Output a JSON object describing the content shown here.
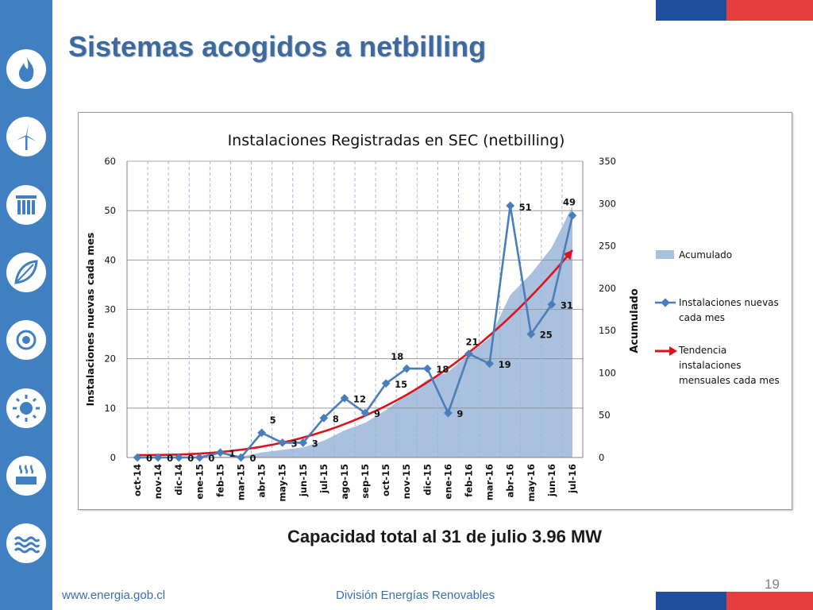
{
  "slide": {
    "title": "Sistemas acogidos a netbilling",
    "subtitle": "Capacidad total al 31 de julio 3.96 MW",
    "footer_url": "www.energia.gob.cl",
    "footer_division": "División Energías Renovables",
    "page_number": "19"
  },
  "sidebar_icons": [
    "flame-icon",
    "wind-turbine-icon",
    "columns-icon",
    "bio-leaf-icon",
    "geothermal-icon",
    "sun-icon",
    "thermal-waves-icon",
    "water-waves-icon"
  ],
  "colors": {
    "sidebar": "#3f7fc2",
    "title": "#3d6a9e",
    "area": "#a9c0de",
    "line": "#4a7ebb",
    "trend": "#e0111b",
    "flag_blue": "#1f4e9c",
    "flag_red": "#e63d3d"
  },
  "chart_data": {
    "type": "line",
    "title": "Instalaciones Registradas en SEC (netbilling)",
    "ylabel": "Instalaciones  nuevas cada mes",
    "y2label": "Acumulado",
    "categories": [
      "oct-14",
      "nov-14",
      "dic-14",
      "ene-15",
      "feb-15",
      "mar-15",
      "abr-15",
      "may-15",
      "jun-15",
      "jul-15",
      "ago-15",
      "sep-15",
      "oct-15",
      "nov-15",
      "dic-15",
      "ene-16",
      "feb-16",
      "mar-16",
      "abr-16",
      "may-16",
      "jun-16",
      "jul-16"
    ],
    "ylim": [
      0,
      60
    ],
    "yticks": [
      0,
      10,
      20,
      30,
      40,
      50,
      60
    ],
    "y2lim": [
      0,
      350
    ],
    "y2ticks": [
      0,
      50,
      100,
      150,
      200,
      250,
      300,
      350
    ],
    "grid": "vertical dashed, horizontal solid",
    "legend_position": "right",
    "series": [
      {
        "name": "Acumulado",
        "type": "area",
        "axis": "right",
        "values": [
          0,
          0,
          0,
          0,
          1,
          1,
          6,
          9,
          12,
          20,
          32,
          41,
          56,
          74,
          92,
          101,
          122,
          141,
          192,
          217,
          248,
          297
        ]
      },
      {
        "name": "Instalaciones nuevas cada mes",
        "type": "line",
        "axis": "left",
        "values": [
          0,
          0,
          0,
          0,
          1,
          0,
          5,
          3,
          3,
          8,
          12,
          9,
          15,
          18,
          18,
          9,
          21,
          19,
          51,
          25,
          31,
          49
        ],
        "data_labels": [
          "0",
          "0",
          "0",
          "0",
          "1",
          "0",
          "5",
          "3",
          "3",
          "8",
          "12",
          "9",
          "15",
          "18",
          "18",
          "9",
          "21",
          "19",
          "51",
          "25",
          "31",
          "49"
        ]
      },
      {
        "name": "Tendencia instalaciones mensuales cada mes",
        "type": "trend",
        "axis": "left"
      }
    ],
    "legend_lines": {
      "acumulado": [
        "Acumulado"
      ],
      "nuevas": [
        "Instalaciones nuevas",
        "cada mes"
      ],
      "tendencia": [
        "Tendencia",
        "instalaciones",
        "mensuales cada mes"
      ]
    }
  }
}
